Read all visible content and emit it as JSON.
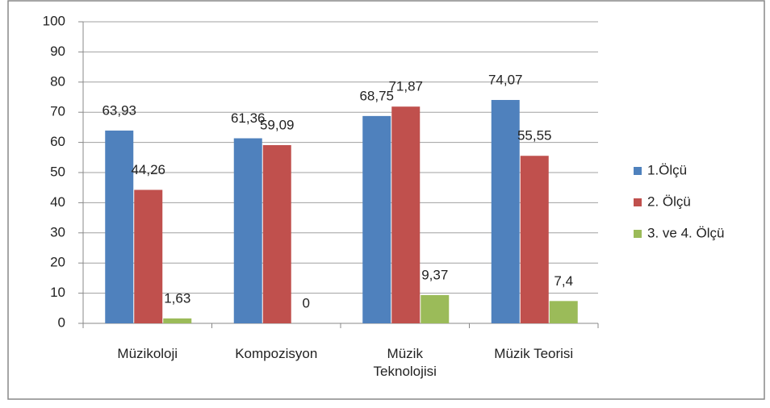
{
  "chart_data": {
    "type": "bar",
    "categories": [
      "Müzikoloji",
      "Kompozisyon",
      "Müzik Teknolojisi",
      "Müzik Teorisi"
    ],
    "series": [
      {
        "name": "1.Ölçü",
        "color": "#4f81bd",
        "values": [
          63.93,
          61.36,
          68.75,
          74.07
        ],
        "value_labels": [
          "63,93",
          "61,36",
          "68,75",
          "74,07"
        ]
      },
      {
        "name": "2. Ölçü",
        "color": "#c0504d",
        "values": [
          44.26,
          59.09,
          71.87,
          55.55
        ],
        "value_labels": [
          "44,26",
          "59,09",
          "71,87",
          "55,55"
        ]
      },
      {
        "name": "3. ve 4. Ölçü",
        "color": "#9bbb59",
        "values": [
          1.63,
          0,
          9.37,
          7.4
        ],
        "value_labels": [
          "1,63",
          "0",
          "9,37",
          "7,4"
        ]
      }
    ],
    "ylim": [
      0,
      100
    ],
    "yticks": [
      0,
      10,
      20,
      30,
      40,
      50,
      60,
      70,
      80,
      90,
      100
    ],
    "grid": true,
    "legend": "right"
  }
}
